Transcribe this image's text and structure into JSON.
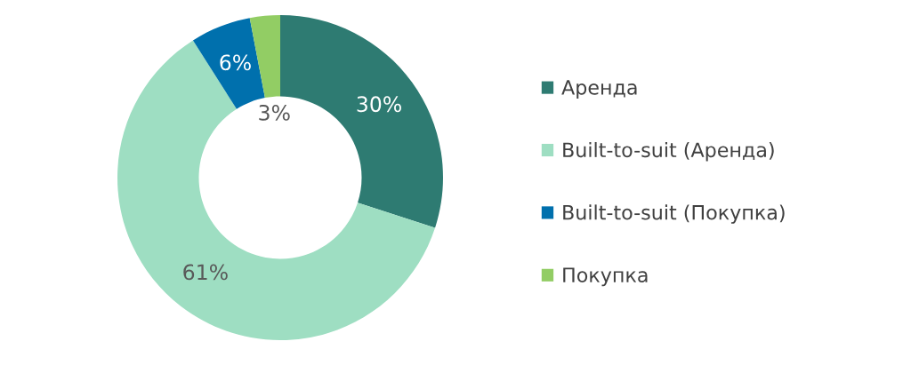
{
  "chart_data": {
    "type": "donut",
    "categories": [
      "Аренда",
      "Built-to-suit (Аренда)",
      "Built-to-suit (Покупка)",
      "Покупка"
    ],
    "values": [
      30,
      61,
      6,
      3
    ],
    "colors": [
      "#2e7b72",
      "#9edec2",
      "#0070ad",
      "#92cd64"
    ],
    "value_labels": [
      "30%",
      "61%",
      "6%",
      "3%"
    ],
    "legend": "right"
  }
}
